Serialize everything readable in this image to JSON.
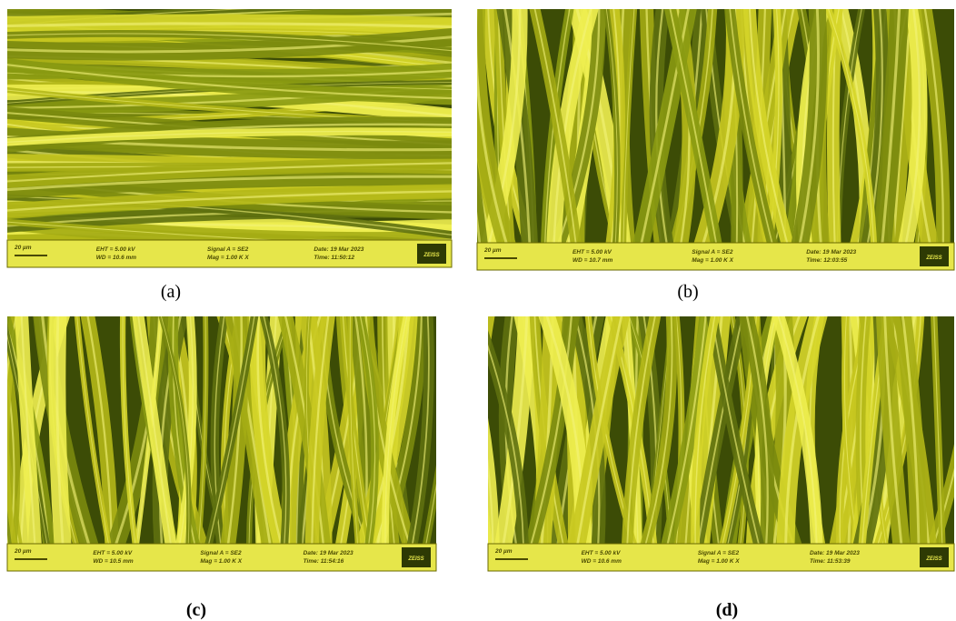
{
  "panels": [
    {
      "label": "(a)",
      "info": {
        "scale": "20 µm",
        "eht": "EHT = 5.00 kV",
        "wd": "WD = 10.6 mm",
        "signal": "Signal A = SE2",
        "mag": "Mag = 1.00 K X",
        "date": "Date: 19 Mar 2023",
        "time": "Time: 11:50:12",
        "logo": "ZEISS"
      }
    },
    {
      "label": "(b)",
      "info": {
        "scale": "20 µm",
        "eht": "EHT = 5.00 kV",
        "wd": "WD = 10.7 mm",
        "signal": "Signal A = SE2",
        "mag": "Mag = 1.00 K X",
        "date": "Date: 19 Mar 2023",
        "time": "Time: 12:03:55",
        "logo": "ZEISS"
      }
    },
    {
      "label": "(c)",
      "info": {
        "scale": "20 µm",
        "eht": "EHT = 5.00 kV",
        "wd": "WD = 10.5 mm",
        "signal": "Signal A = SE2",
        "mag": "Mag = 1.00 K X",
        "date": "Date: 19 Mar 2023",
        "time": "Time: 11:54:16",
        "logo": "ZEISS"
      }
    },
    {
      "label": "(d)",
      "info": {
        "scale": "20 µm",
        "eht": "EHT = 5.00 kV",
        "wd": "WD = 10.6 mm",
        "signal": "Signal A = SE2",
        "mag": "Mag = 1.00 K X",
        "date": "Date: 19 Mar 2023",
        "time": "Time: 11:53:39",
        "logo": "ZEISS"
      }
    }
  ]
}
